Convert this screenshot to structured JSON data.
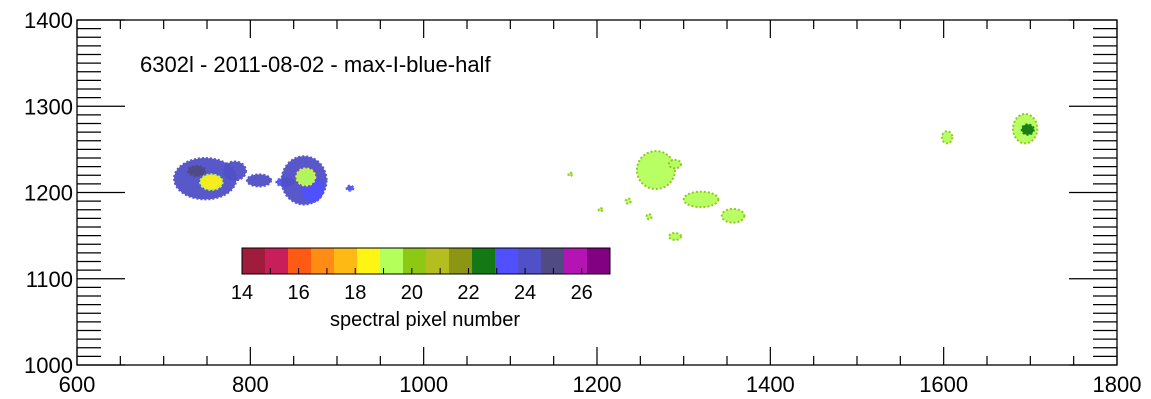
{
  "chart_data": {
    "type": "scatter",
    "title": "6302l  -  2011-08-02  -  max-I-blue-half",
    "xlim": [
      600,
      1800
    ],
    "ylim": [
      1000,
      1400
    ],
    "x_ticks": [
      600,
      800,
      1000,
      1200,
      1400,
      1600,
      1800
    ],
    "x_tick_labels": [
      "600",
      "800",
      "1000",
      "1200",
      "1400",
      "1600",
      "1800"
    ],
    "y_ticks": [
      1000,
      1100,
      1200,
      1300,
      1400
    ],
    "y_tick_labels": [
      "1000",
      "1100",
      "1200",
      "1300",
      "1400"
    ],
    "grid": false,
    "colorbar": {
      "label": "spectral pixel number",
      "range": [
        14,
        27
      ],
      "tick_values": [
        14,
        16,
        18,
        20,
        22,
        24,
        26
      ],
      "tick_labels": [
        "14",
        "16",
        "18",
        "20",
        "22",
        "24",
        "26"
      ],
      "colors": [
        "#a01c3c",
        "#c81e5a",
        "#ff5a14",
        "#ff8c14",
        "#ffb914",
        "#fff514",
        "#b4ff5a",
        "#8cc814",
        "#b4be1e",
        "#8c9614",
        "#147814",
        "#5050ff",
        "#5050c8",
        "#504b82",
        "#b414b4",
        "#820082"
      ]
    },
    "features": [
      {
        "x": 748,
        "y": 1216,
        "rx": 36,
        "ry": 24,
        "value": 26,
        "outline": 26
      },
      {
        "x": 738,
        "y": 1225,
        "rx": 10,
        "ry": 6,
        "value": 27,
        "outline": 27
      },
      {
        "x": 782,
        "y": 1225,
        "rx": 13,
        "ry": 11,
        "value": 26,
        "outline": 26
      },
      {
        "x": 810,
        "y": 1214,
        "rx": 14,
        "ry": 7,
        "value": 26,
        "outline": 26
      },
      {
        "x": 840,
        "y": 1212,
        "rx": 10,
        "ry": 5,
        "value": 25,
        "outline": 25
      },
      {
        "x": 755,
        "y": 1212,
        "rx": 13,
        "ry": 9,
        "value": 19,
        "outline": 20
      },
      {
        "x": 862,
        "y": 1214,
        "rx": 26,
        "ry": 28,
        "value": 26,
        "outline": 26
      },
      {
        "x": 872,
        "y": 1204,
        "rx": 12,
        "ry": 15,
        "value": 25,
        "outline": 25
      },
      {
        "x": 864,
        "y": 1218,
        "rx": 11,
        "ry": 10,
        "value": 20,
        "outline": 19
      },
      {
        "x": 915,
        "y": 1205,
        "rx": 4,
        "ry": 3,
        "value": 25,
        "outline": 25
      },
      {
        "x": 1268,
        "y": 1226,
        "rx": 22,
        "ry": 22,
        "value": 20,
        "outline": 21
      },
      {
        "x": 1290,
        "y": 1233,
        "rx": 7,
        "ry": 5,
        "value": 20,
        "outline": 21
      },
      {
        "x": 1320,
        "y": 1192,
        "rx": 20,
        "ry": 9,
        "value": 20,
        "outline": 21
      },
      {
        "x": 1357,
        "y": 1173,
        "rx": 13,
        "ry": 8,
        "value": 20,
        "outline": 21
      },
      {
        "x": 1290,
        "y": 1149,
        "rx": 7,
        "ry": 4,
        "value": 20,
        "outline": 21
      },
      {
        "x": 1260,
        "y": 1172,
        "rx": 3,
        "ry": 3,
        "value": 20,
        "outline": 21
      },
      {
        "x": 1236,
        "y": 1190,
        "rx": 3,
        "ry": 3,
        "value": 20,
        "outline": 21
      },
      {
        "x": 1169,
        "y": 1221,
        "rx": 2,
        "ry": 2,
        "value": 20,
        "outline": 21
      },
      {
        "x": 1204,
        "y": 1180,
        "rx": 2,
        "ry": 2,
        "value": 20,
        "outline": 21
      },
      {
        "x": 1604,
        "y": 1264,
        "rx": 6,
        "ry": 7,
        "value": 20,
        "outline": 21
      },
      {
        "x": 1694,
        "y": 1274,
        "rx": 14,
        "ry": 17,
        "value": 20,
        "outline": 21
      },
      {
        "x": 1697,
        "y": 1273,
        "rx": 7,
        "ry": 6,
        "value": 24,
        "outline": 24
      }
    ]
  }
}
